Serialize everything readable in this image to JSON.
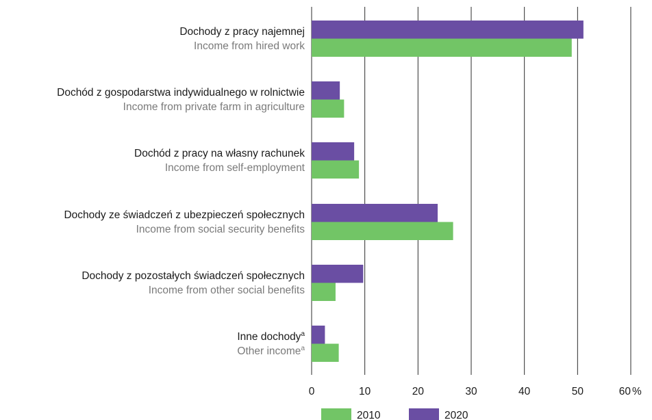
{
  "chart_data": {
    "type": "bar",
    "orientation": "horizontal",
    "categories": [
      {
        "label_pl": "Dochody z pracy najemnej",
        "label_en": "Income from hired work",
        "footnote": ""
      },
      {
        "label_pl": "Dochód z gospodarstwa indywidualnego w rolnictwie",
        "label_en": "Income from private farm in agriculture",
        "footnote": ""
      },
      {
        "label_pl": "Dochód z pracy na własny rachunek",
        "label_en": "Income from self-employment",
        "footnote": ""
      },
      {
        "label_pl": "Dochody ze świadczeń z ubezpieczeń społecznych",
        "label_en": "Income from social security benefits",
        "footnote": ""
      },
      {
        "label_pl": "Dochody z pozostałych świadczeń społecznych",
        "label_en": "Income from other social benefits",
        "footnote": ""
      },
      {
        "label_pl": "Inne dochody",
        "label_en": "Other income",
        "footnote": "a"
      }
    ],
    "series": [
      {
        "name": "2020",
        "color": "#6a4ea3",
        "values": [
          51.1,
          5.3,
          8.0,
          23.7,
          9.7,
          2.5
        ]
      },
      {
        "name": "2010",
        "color": "#72c566",
        "values": [
          48.9,
          6.1,
          8.9,
          26.6,
          4.5,
          5.1
        ]
      }
    ],
    "x_ticks": [
      "0",
      "10",
      "20",
      "30",
      "40",
      "50",
      "60"
    ],
    "x_unit": "%",
    "xlim": [
      0,
      60
    ],
    "grid": true,
    "legend": [
      {
        "name": "2010",
        "color": "#72c566"
      },
      {
        "name": "2020",
        "color": "#6a4ea3"
      }
    ],
    "legend_position": "bottom"
  }
}
